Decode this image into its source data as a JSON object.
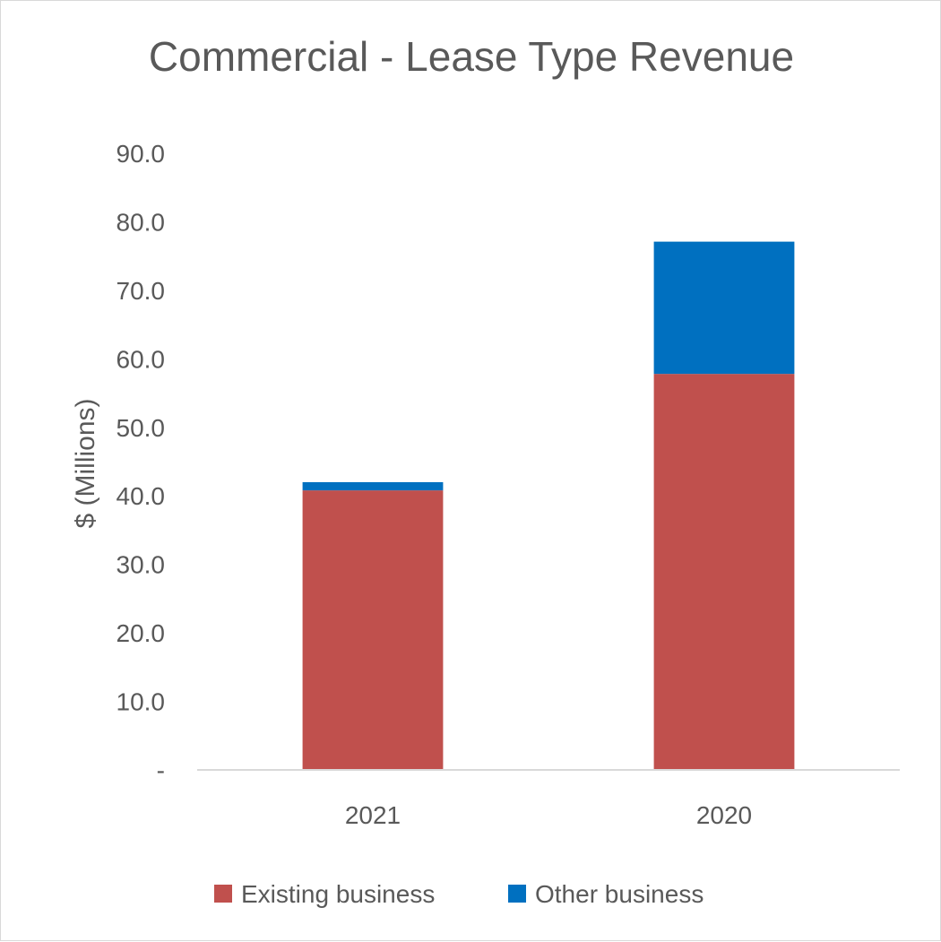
{
  "chart_data": {
    "type": "bar",
    "stacked": true,
    "title": "Commercial - Lease Type Revenue",
    "xlabel": "",
    "ylabel": "$ (Millions)",
    "categories": [
      "2021",
      "2020"
    ],
    "series": [
      {
        "name": "Existing business",
        "values": [
          40.8,
          57.8
        ],
        "color": "#c0504d"
      },
      {
        "name": "Other business",
        "values": [
          1.2,
          19.3
        ],
        "color": "#0070c0"
      }
    ],
    "ylim": [
      0,
      90
    ],
    "yticks": [
      0,
      10,
      20,
      30,
      40,
      50,
      60,
      70,
      80,
      90
    ],
    "ytick_labels": [
      "-",
      "10.0",
      "20.0",
      "30.0",
      "40.0",
      "50.0",
      "60.0",
      "70.0",
      "80.0",
      "90.0"
    ],
    "grid": false,
    "legend_position": "bottom"
  }
}
